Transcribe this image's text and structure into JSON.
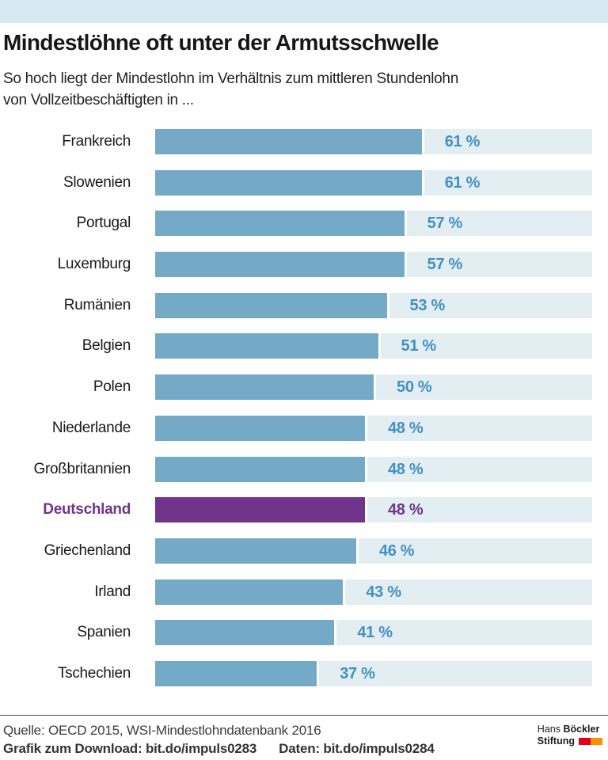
{
  "page": {
    "accent_strip_color": "#d6e8f1",
    "background_color": "#ffffff"
  },
  "header": {
    "title": "Mindestlöhne oft unter der Armutsschwelle",
    "subtitle_line1": "So hoch liegt der Mindestlohn im Verhältnis zum mittleren Stundenlohn",
    "subtitle_line2": "von Vollzeitbeschäftigten in ..."
  },
  "chart_data": {
    "type": "bar",
    "orientation": "horizontal",
    "title": "Mindestlöhne oft unter der Armutsschwelle",
    "xlabel": "Mindestlohn im Verhältnis zum mittleren Stundenlohn",
    "unit": "%",
    "xlim": [
      0,
      100
    ],
    "grid": false,
    "legend": false,
    "categories": [
      "Frankreich",
      "Slowenien",
      "Portugal",
      "Luxemburg",
      "Rumänien",
      "Belgien",
      "Polen",
      "Niederlande",
      "Großbritannien",
      "Deutschland",
      "Griechenland",
      "Irland",
      "Spanien",
      "Tschechien"
    ],
    "values": [
      61,
      61,
      57,
      57,
      53,
      51,
      50,
      48,
      48,
      48,
      46,
      43,
      41,
      37
    ],
    "value_labels": [
      "61 %",
      "61 %",
      "57 %",
      "57 %",
      "53 %",
      "51 %",
      "50 %",
      "48 %",
      "48 %",
      "48 %",
      "46 %",
      "43 %",
      "41 %",
      "37 %"
    ],
    "highlight_category": "Deutschland",
    "colors": {
      "bar": "#74a9c8",
      "track": "#e2eef1",
      "value_text": "#4390c2",
      "highlight": "#70348b",
      "label_text": "#191919"
    }
  },
  "footer": {
    "source": "Quelle: OECD 2015, WSI-Mindestlohndatenbank 2016",
    "download": "Grafik zum Download: bit.do/impuls0283",
    "daten": "Daten: bit.do/impuls0284",
    "logo": {
      "line1_regular": "Hans",
      "line1_bold": "Böckler",
      "line2_bold": "Stiftung",
      "block_colors": [
        "#e2001a",
        "#f29400"
      ]
    }
  }
}
